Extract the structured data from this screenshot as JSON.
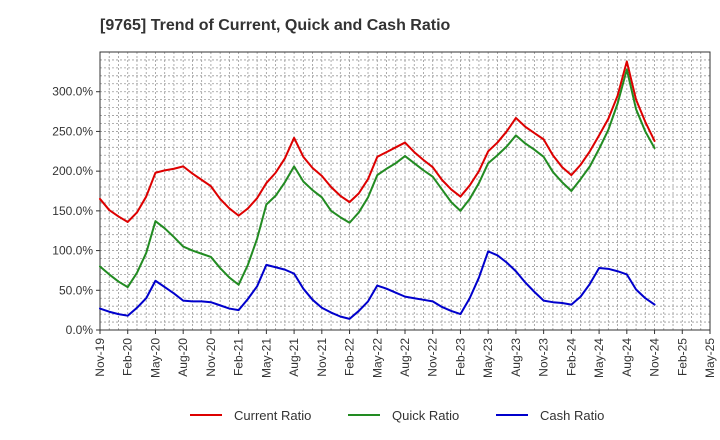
{
  "chart_data": {
    "type": "line",
    "title": "[9765]  Trend of Current, Quick and Cash Ratio",
    "xlabel": "",
    "ylabel": "",
    "ylim": [
      0,
      350
    ],
    "yticks": [
      0,
      50,
      100,
      150,
      200,
      250,
      300
    ],
    "ytick_labels": [
      "0.0%",
      "50.0%",
      "100.0%",
      "150.0%",
      "200.0%",
      "250.0%",
      "300.0%"
    ],
    "x_tick_labels": [
      "Nov-19",
      "Feb-20",
      "May-20",
      "Aug-20",
      "Nov-20",
      "Feb-21",
      "May-21",
      "Aug-21",
      "Nov-21",
      "Feb-22",
      "May-22",
      "Aug-22",
      "Nov-22",
      "Feb-23",
      "May-23",
      "Aug-23",
      "Nov-23",
      "Feb-24",
      "May-24",
      "Aug-24",
      "Nov-24",
      "Feb-25",
      "May-25"
    ],
    "x_tick_months": [
      0,
      3,
      6,
      9,
      12,
      15,
      18,
      21,
      24,
      27,
      30,
      33,
      36,
      39,
      42,
      45,
      48,
      51,
      54,
      57,
      60,
      63,
      66
    ],
    "x_months": [
      0,
      1,
      2,
      3,
      4,
      5,
      6,
      7,
      8,
      9,
      10,
      11,
      12,
      13,
      14,
      15,
      16,
      17,
      18,
      19,
      20,
      21,
      22,
      23,
      24,
      25,
      26,
      27,
      28,
      29,
      30,
      31,
      32,
      33,
      34,
      35,
      36,
      37,
      38,
      39,
      40,
      41,
      42,
      43,
      44,
      45,
      46,
      47,
      48,
      49,
      50,
      51,
      52,
      53,
      54,
      55,
      56,
      57,
      58,
      59,
      60
    ],
    "x_range": [
      0,
      66
    ],
    "legend_position": "bottom",
    "grid": true,
    "series": [
      {
        "name": "Current Ratio",
        "color": "#dd0000",
        "values": [
          165,
          151,
          143,
          136,
          148,
          168,
          198,
          201,
          203,
          206,
          197,
          189,
          181,
          165,
          153,
          144,
          153,
          166,
          185,
          198,
          216,
          242,
          218,
          204,
          194,
          180,
          169,
          161,
          172,
          190,
          218,
          224,
          230,
          236,
          224,
          214,
          205,
          189,
          177,
          168,
          182,
          200,
          225,
          236,
          250,
          267,
          256,
          248,
          240,
          220,
          205,
          195,
          208,
          225,
          245,
          266,
          295,
          338,
          290,
          262,
          238
        ]
      },
      {
        "name": "Quick Ratio",
        "color": "#228b22",
        "values": [
          80,
          70,
          61,
          54,
          72,
          97,
          137,
          128,
          117,
          105,
          100,
          96,
          92,
          78,
          66,
          57,
          82,
          115,
          158,
          169,
          186,
          206,
          187,
          176,
          167,
          150,
          142,
          135,
          148,
          167,
          195,
          203,
          210,
          219,
          210,
          201,
          193,
          177,
          161,
          150,
          165,
          185,
          210,
          220,
          231,
          245,
          235,
          227,
          218,
          199,
          186,
          175,
          190,
          206,
          228,
          252,
          285,
          328,
          278,
          250,
          229
        ]
      },
      {
        "name": "Cash Ratio",
        "color": "#0000cc",
        "values": [
          27,
          23,
          20,
          18,
          28,
          40,
          62,
          54,
          46,
          37,
          36,
          36,
          35,
          31,
          27,
          25,
          39,
          55,
          82,
          79,
          76,
          71,
          52,
          38,
          28,
          22,
          17,
          14,
          24,
          36,
          56,
          52,
          47,
          42,
          40,
          38,
          36,
          29,
          24,
          20,
          40,
          66,
          99,
          94,
          85,
          74,
          60,
          48,
          37,
          35,
          34,
          32,
          42,
          58,
          78,
          77,
          74,
          70,
          51,
          40,
          32
        ]
      }
    ]
  }
}
